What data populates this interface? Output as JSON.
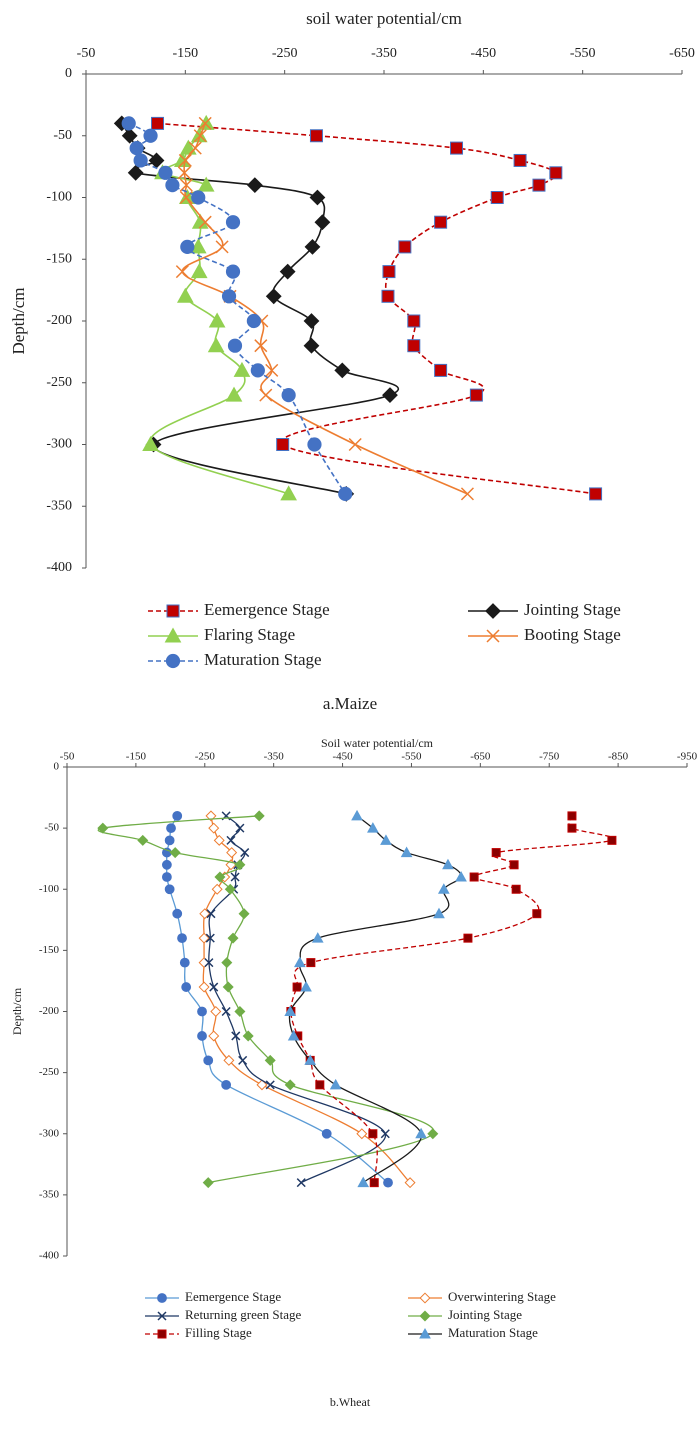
{
  "chart_data": [
    {
      "type": "line",
      "title": "soil water potential/cm",
      "y_label": "Depth/cm",
      "caption": "a.Maize",
      "xlim": [
        -50,
        -650
      ],
      "xticks": [
        -50,
        -150,
        -250,
        -350,
        -450,
        -550,
        -650
      ],
      "ylim": [
        -400,
        0
      ],
      "yticks": [
        0,
        -50,
        -100,
        -150,
        -200,
        -250,
        -300,
        -350,
        -400
      ],
      "series": [
        {
          "name": "Eemergence Stage",
          "color": "#c00000",
          "marker_color": "#c00000",
          "marker_edge": "#4472c4",
          "marker": "square",
          "dash": true,
          "x": [
            -122,
            -282,
            -423,
            -487,
            -523,
            -506,
            -464,
            -407,
            -371,
            -355,
            -354,
            -380,
            -380,
            -407,
            -443,
            -248,
            -563
          ],
          "values": [
            -40,
            -50,
            -60,
            -70,
            -80,
            -90,
            -100,
            -120,
            -140,
            -160,
            -180,
            -200,
            -220,
            -240,
            -260,
            -300,
            -340
          ]
        },
        {
          "name": "Jointing Stage",
          "color": "#1a1a1a",
          "marker_color": "#1a1a1a",
          "marker": "diamond",
          "dash": false,
          "x": [
            -86,
            -94,
            -102,
            -121,
            -100,
            -220,
            -283,
            -288,
            -278,
            -253,
            -239,
            -277,
            -277,
            -308,
            -356,
            -118,
            -312
          ],
          "values": [
            -40,
            -50,
            -60,
            -70,
            -80,
            -90,
            -100,
            -120,
            -140,
            -160,
            -180,
            -200,
            -220,
            -240,
            -260,
            -300,
            -340
          ]
        },
        {
          "name": "Flaring Stage",
          "color": "#92d050",
          "marker_color": "#92d050",
          "marker": "triangle",
          "dash": false,
          "x": [
            -171,
            -164,
            -153,
            -147,
            -127,
            -171,
            -152,
            -165,
            -163,
            -164,
            -150,
            -182,
            -181,
            -207,
            -199,
            -115,
            -254
          ],
          "values": [
            -40,
            -50,
            -60,
            -70,
            -80,
            -90,
            -100,
            -120,
            -140,
            -160,
            -180,
            -200,
            -220,
            -240,
            -260,
            -300,
            -340
          ]
        },
        {
          "name": "Booting Stage",
          "color": "#ed7d31",
          "marker_color": "#ed7d31",
          "marker": "x",
          "dash": false,
          "x": [
            -170,
            -165,
            -160,
            -150,
            -149,
            -151,
            -151,
            -170,
            -187,
            -147,
            -195,
            -227,
            -226,
            -237,
            -231,
            -321,
            -434
          ],
          "values": [
            -40,
            -50,
            -60,
            -70,
            -80,
            -90,
            -100,
            -120,
            -140,
            -160,
            -180,
            -200,
            -220,
            -240,
            -260,
            -300,
            -340
          ]
        },
        {
          "name": "Maturation Stage",
          "color": "#4472c4",
          "marker_color": "#4472c4",
          "marker": "circle",
          "dash": true,
          "x": [
            -93,
            -115,
            -101,
            -105,
            -130,
            -137,
            -163,
            -198,
            -152,
            -198,
            -194,
            -219,
            -200,
            -223,
            -254,
            -280,
            -311
          ],
          "values": [
            -40,
            -50,
            -60,
            -70,
            -80,
            -90,
            -100,
            -120,
            -140,
            -160,
            -180,
            -200,
            -220,
            -240,
            -260,
            -300,
            -340
          ]
        }
      ]
    },
    {
      "type": "line",
      "title": "Soil water potential/cm",
      "y_label": "Depth/cm",
      "caption": "b.Wheat",
      "xlim": [
        -50,
        -950
      ],
      "xticks": [
        -50,
        -150,
        -250,
        -350,
        -450,
        -550,
        -650,
        -750,
        -850,
        -950
      ],
      "ylim": [
        -400,
        0
      ],
      "yticks": [
        0,
        -50,
        -100,
        -150,
        -200,
        -250,
        -300,
        -350,
        -400
      ],
      "series": [
        {
          "name": "Eemergence Stage",
          "color": "#5b9bd5",
          "marker_color": "#4472c4",
          "marker": "circle",
          "dash": false,
          "x": [
            -210,
            -201,
            -199,
            -195,
            -195,
            -195,
            -199,
            -210,
            -217,
            -221,
            -223,
            -246,
            -246,
            -255,
            -281,
            -427,
            -516
          ],
          "values": [
            -40,
            -50,
            -60,
            -70,
            -80,
            -90,
            -100,
            -120,
            -140,
            -160,
            -180,
            -200,
            -220,
            -240,
            -260,
            -300,
            -340
          ]
        },
        {
          "name": "Overwintering Stage",
          "color": "#ed7d31",
          "marker_color": "#ed7d31",
          "marker": "open-diamond",
          "dash": false,
          "x": [
            -259,
            -263,
            -271,
            -289,
            -288,
            -279,
            -268,
            -250,
            -249,
            -249,
            -249,
            -266,
            -263,
            -285,
            -333,
            -478,
            -548
          ],
          "values": [
            -40,
            -50,
            -60,
            -70,
            -80,
            -90,
            -100,
            -120,
            -140,
            -160,
            -180,
            -200,
            -220,
            -240,
            -260,
            -300,
            -340
          ]
        },
        {
          "name": "Returning green Stage",
          "color": "#1f3864",
          "marker_color": "#1f3864",
          "marker": "x",
          "dash": false,
          "x": [
            -281,
            -301,
            -288,
            -308,
            -298,
            -294,
            -292,
            -259,
            -258,
            -256,
            -263,
            -281,
            -295,
            -305,
            -345,
            -512,
            -390
          ],
          "values": [
            -40,
            -50,
            -60,
            -70,
            -80,
            -90,
            -100,
            -120,
            -140,
            -160,
            -180,
            -200,
            -220,
            -240,
            -260,
            -300,
            -340
          ]
        },
        {
          "name": "Jointing Stage",
          "color": "#70ad47",
          "marker_color": "#70ad47",
          "marker": "diamond",
          "dash": false,
          "x": [
            -329,
            -102,
            -160,
            -207,
            -301,
            -272,
            -287,
            -307,
            -291,
            -282,
            -284,
            -301,
            -313,
            -345,
            -374,
            -581,
            -255
          ],
          "values": [
            -40,
            -50,
            -60,
            -70,
            -80,
            -90,
            -100,
            -120,
            -140,
            -160,
            -180,
            -200,
            -220,
            -240,
            -260,
            -300,
            -340
          ]
        },
        {
          "name": "Filling Stage",
          "color": "#c00000",
          "marker_color": "#8b0000",
          "marker_edge": "#c00000",
          "marker": "square",
          "dash": true,
          "x": [
            -783,
            -783,
            -841,
            -673,
            -699,
            -641,
            -702,
            -732,
            -632,
            -404,
            -384,
            -375,
            -385,
            -403,
            -417,
            -494,
            -496
          ],
          "values": [
            -40,
            -50,
            -60,
            -70,
            -80,
            -90,
            -100,
            -120,
            -140,
            -160,
            -180,
            -200,
            -220,
            -240,
            -260,
            -300,
            -340
          ]
        },
        {
          "name": "Maturation Stage",
          "color": "#1a1a1a",
          "marker_color": "#5b9bd5",
          "marker": "triangle",
          "dash": false,
          "x": [
            -471,
            -494,
            -513,
            -543,
            -603,
            -622,
            -597,
            -590,
            -414,
            -388,
            -397,
            -374,
            -379,
            -403,
            -440,
            -564,
            -480
          ],
          "values": [
            -40,
            -50,
            -60,
            -70,
            -80,
            -90,
            -100,
            -120,
            -140,
            -160,
            -180,
            -200,
            -220,
            -240,
            -260,
            -300,
            -340
          ]
        }
      ]
    }
  ]
}
